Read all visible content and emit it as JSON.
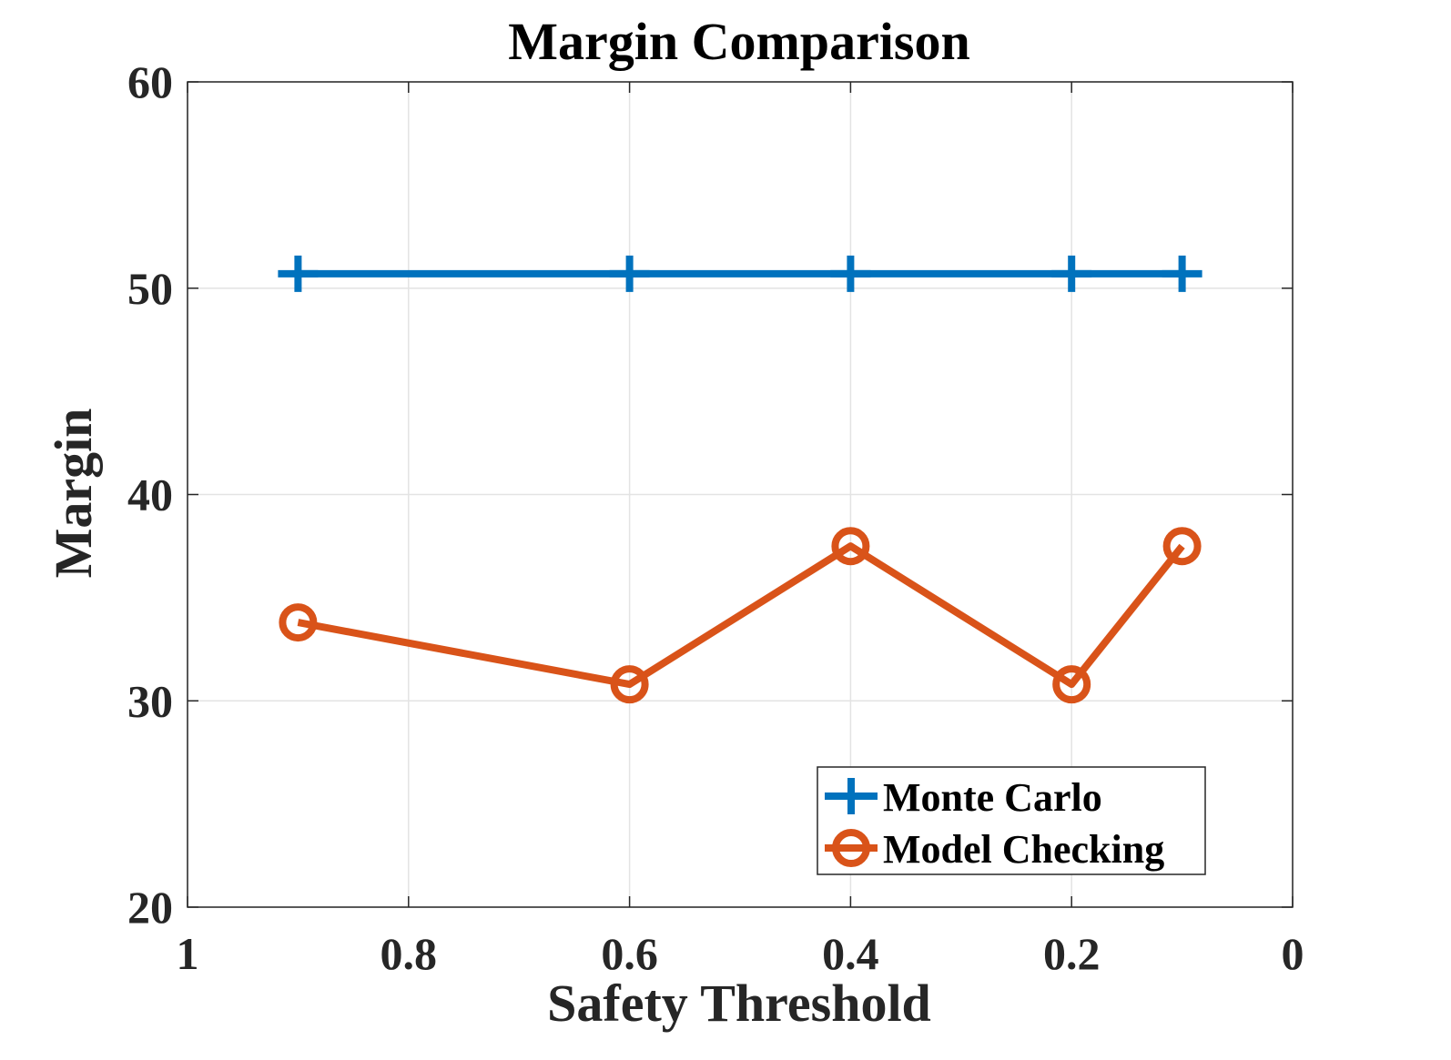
{
  "chart_data": {
    "type": "line",
    "title": "Margin Comparison",
    "xlabel": "Safety Threshold",
    "ylabel": "Margin",
    "xlim": [
      1,
      0
    ],
    "ylim": [
      20,
      60
    ],
    "x_reversed": true,
    "xticks": [
      "1",
      "0.8",
      "0.6",
      "0.4",
      "0.2",
      "0"
    ],
    "yticks": [
      "20",
      "30",
      "40",
      "50",
      "60"
    ],
    "grid": true,
    "legend_position": "bottom-right",
    "x": [
      0.9,
      0.6,
      0.4,
      0.2,
      0.1
    ],
    "series": [
      {
        "name": "Monte Carlo",
        "values": [
          50.7,
          50.7,
          50.7,
          50.7,
          50.7
        ],
        "color": "#0072BD",
        "marker": "plus"
      },
      {
        "name": "Model Checking",
        "values": [
          33.8,
          30.8,
          37.5,
          30.8,
          37.5
        ],
        "color": "#D95319",
        "marker": "circle"
      }
    ]
  }
}
